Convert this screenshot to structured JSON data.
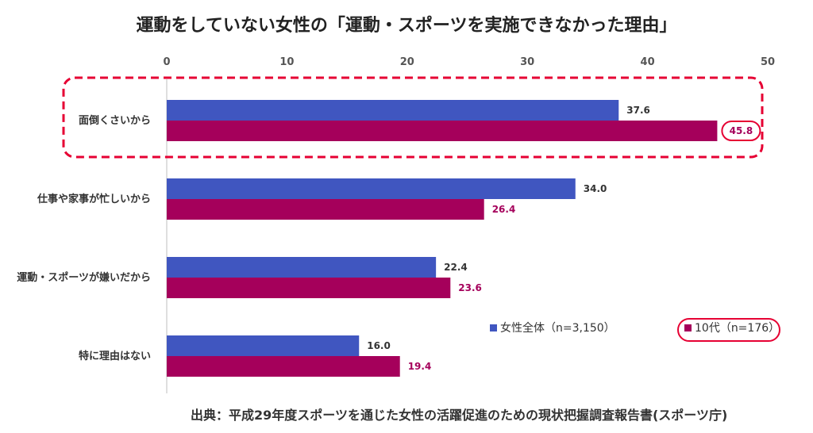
{
  "chart_data": {
    "type": "bar",
    "orientation": "horizontal",
    "title": "運動をしていない女性の「運動・スポーツを実施できなかった理由」",
    "categories": [
      "面倒くさいから",
      "仕事や家事が忙しいから",
      "運動・スポーツが嫌いだから",
      "特に理由はない"
    ],
    "series": [
      {
        "name": "女性全体（n=3,150）",
        "values": [
          37.6,
          34.0,
          22.4,
          16.0
        ],
        "color": "#4056C0"
      },
      {
        "name": "10代（n=176）",
        "values": [
          45.8,
          26.4,
          23.6,
          19.4
        ],
        "color": "#A5005B"
      }
    ],
    "value_labels": [
      [
        "37.6",
        "34.0",
        "22.4",
        "16.0"
      ],
      [
        "45.8",
        "26.4",
        "23.6",
        "19.4"
      ]
    ],
    "xlim": [
      0,
      50
    ],
    "xticks": [
      "0",
      "10",
      "20",
      "30",
      "40",
      "50"
    ],
    "xaxis_position": "top",
    "grid": false,
    "legend": "bottom-right",
    "highlight": {
      "category": "面倒くさいから",
      "style": "red-dashed-box"
    },
    "highlight_color": "#E60033"
  },
  "source_note": "出典：平成29年度スポーツを通じた女性の活躍促進のための現状把握調査報告書(スポーツ庁)"
}
